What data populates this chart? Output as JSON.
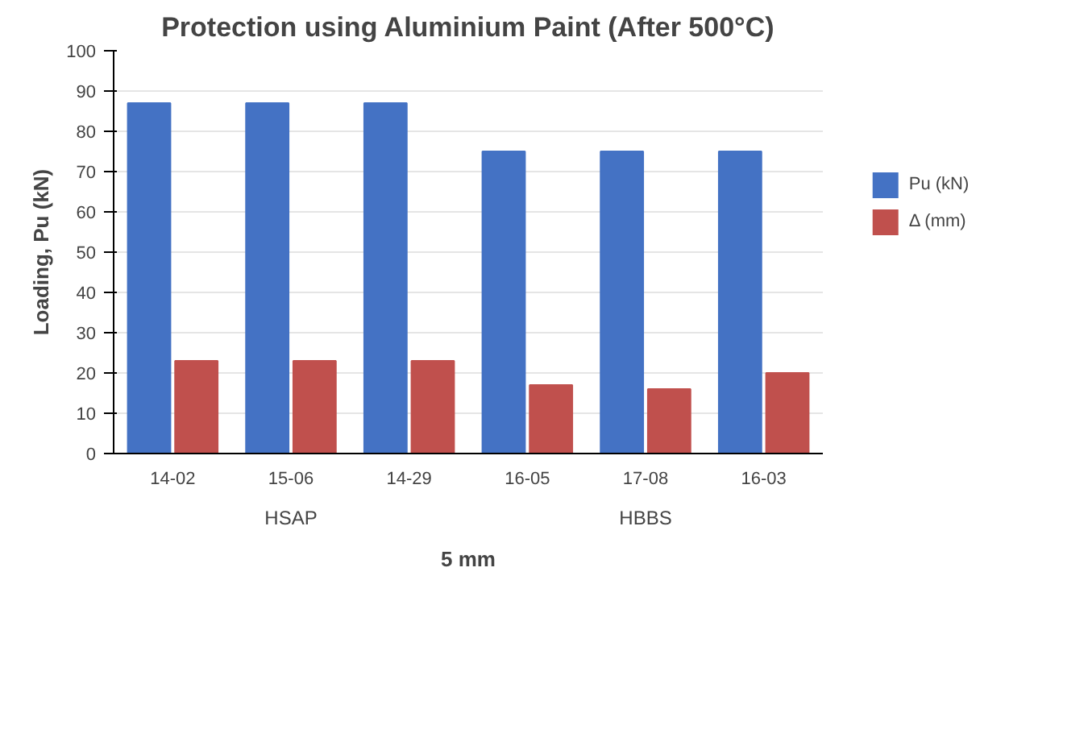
{
  "chart_data": {
    "type": "bar",
    "title": "Protection using Aluminium Paint (After 500°C)",
    "xlabel": "5 mm",
    "ylabel": "Loading, Pu (kN)",
    "categories": [
      "14-02",
      "15-06",
      "14-29",
      "16-05",
      "17-08",
      "16-03"
    ],
    "series": [
      {
        "name": "Pu (kN)",
        "color": "#4472c4",
        "values": [
          87,
          87,
          87,
          75,
          75,
          75
        ]
      },
      {
        "name": "Δ (mm)",
        "color": "#c0504d",
        "values": [
          23,
          23,
          23,
          17,
          16,
          20
        ]
      }
    ],
    "annotations": [
      "HSAP",
      "HBBS"
    ],
    "ylim": [
      0,
      100
    ],
    "yticks": [
      0,
      10,
      20,
      30,
      40,
      50,
      60,
      70,
      80,
      90,
      100
    ],
    "grid": "y",
    "legend": "right"
  }
}
